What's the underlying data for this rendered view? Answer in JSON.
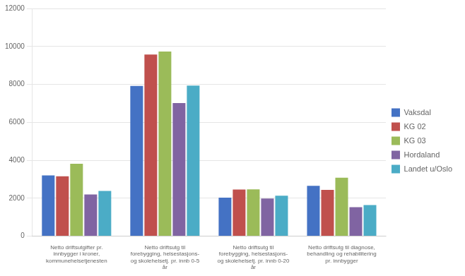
{
  "chart_data": {
    "type": "bar",
    "categories": [
      "Netto driftsutgifter pr.\ninnbygger i kroner,\nkommunehelsetjenesten",
      "Netto driftsutg til\nforebygging, helsestasjons-\nog skolehelsetj. pr. innb 0-5\når",
      "Netto driftsutg til\nforebygging, helsestasjons-\nog skolehelsetj. pr. innb 0-20\når",
      "Netto driftsutg til diagnose,\nbehandling og rehabilitering\npr. innbygger"
    ],
    "series": [
      {
        "name": "Vaksdal",
        "color": "#4472C4",
        "values": [
          3200,
          7920,
          2030,
          2650
        ]
      },
      {
        "name": "KG 02",
        "color": "#C0504D",
        "values": [
          3160,
          9570,
          2460,
          2440
        ]
      },
      {
        "name": "KG 03",
        "color": "#9BBB59",
        "values": [
          3820,
          9730,
          2470,
          3080
        ]
      },
      {
        "name": "Hordaland",
        "color": "#8064A2",
        "values": [
          2200,
          7020,
          1980,
          1530
        ]
      },
      {
        "name": "Landet u/Oslo",
        "color": "#4BACC6",
        "values": [
          2380,
          7940,
          2130,
          1640
        ]
      }
    ],
    "ylim": [
      0,
      12000
    ],
    "yticks": [
      0,
      2000,
      4000,
      6000,
      8000,
      10000,
      12000
    ],
    "grid": true,
    "legend": "right"
  }
}
